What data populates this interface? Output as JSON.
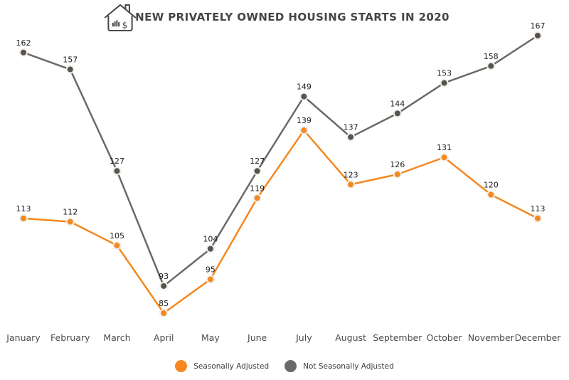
{
  "header": {
    "title": "NEW PRIVATELY OWNED HOUSING STARTS IN 2020",
    "icon": "house-bar-chart-dollar-icon"
  },
  "colors": {
    "background": "#FFFFFF",
    "title_text": "#454543",
    "axis_text": "#4C4C4A",
    "data_label_text": "#1C1C1C",
    "seasonally_adjusted_orange": "#F5881F",
    "not_seasonally_adjusted_gray_line": "#6B6967",
    "not_seasonally_adjusted_gray_point": "#57534F",
    "point_halo": "#F1EEE9"
  },
  "chart_data": {
    "type": "line",
    "title": "NEW PRIVATELY OWNED HOUSING STARTS IN 2020",
    "xlabel": "",
    "ylabel": "",
    "grid": false,
    "data_labels": true,
    "legend_position": "bottom",
    "ylim": [
      85,
      167
    ],
    "categories": [
      "January",
      "February",
      "March",
      "April",
      "May",
      "June",
      "July",
      "August",
      "September",
      "October",
      "November",
      "December"
    ],
    "series": [
      {
        "name": "Seasonally Adjusted",
        "color": "#F5881F",
        "point_color": "#F5881F",
        "values": [
          113,
          112,
          105,
          85,
          95,
          119,
          139,
          123,
          126,
          131,
          120,
          113
        ]
      },
      {
        "name": "Not Seasonally Adjusted",
        "color": "#6B6967",
        "point_color": "#57534F",
        "values": [
          162,
          157,
          127,
          93,
          104,
          127,
          149,
          137,
          144,
          153,
          158,
          167
        ]
      }
    ]
  },
  "legend": {
    "items": [
      {
        "label": "Seasonally Adjusted",
        "color": "#F5881F"
      },
      {
        "label": "Not Seasonally Adjusted",
        "color": "#6B6967"
      }
    ]
  }
}
